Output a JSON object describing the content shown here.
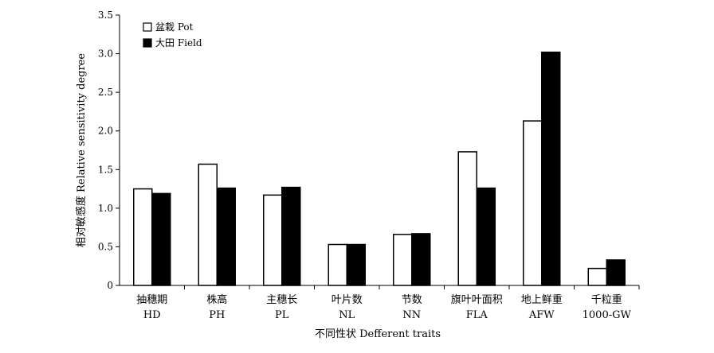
{
  "chart_data": {
    "type": "bar",
    "title": "",
    "xlabel": "不同性状 Defferent traits",
    "ylabel": "相对敏感度 Relative sensitivity degree",
    "ylim": [
      0,
      3.5
    ],
    "yticks": [
      "0",
      "0.5",
      "1.0",
      "1.5",
      "2.0",
      "2.5",
      "3.0",
      "3.5"
    ],
    "ytick_values": [
      0,
      0.5,
      1.0,
      1.5,
      2.0,
      2.5,
      3.0,
      3.5
    ],
    "categories": [
      {
        "cn": "抽穗期",
        "en": "HD"
      },
      {
        "cn": "株高",
        "en": "PH"
      },
      {
        "cn": "主穗长",
        "en": "PL"
      },
      {
        "cn": "叶片数",
        "en": "NL"
      },
      {
        "cn": "节数",
        "en": "NN"
      },
      {
        "cn": "旗叶叶面积",
        "en": "FLA"
      },
      {
        "cn": "地上鲜重",
        "en": "AFW"
      },
      {
        "cn": "千粒重",
        "en": "1000-GW"
      }
    ],
    "series": [
      {
        "name": "盆栽 Pot",
        "color": "#ffffff",
        "values": [
          1.25,
          1.57,
          1.17,
          0.53,
          0.66,
          1.73,
          2.13,
          0.22
        ]
      },
      {
        "name": "大田 Field",
        "color": "#000000",
        "values": [
          1.19,
          1.26,
          1.27,
          0.53,
          0.67,
          1.26,
          3.02,
          0.33
        ]
      }
    ],
    "grid": false,
    "legend_position": "top-left"
  }
}
